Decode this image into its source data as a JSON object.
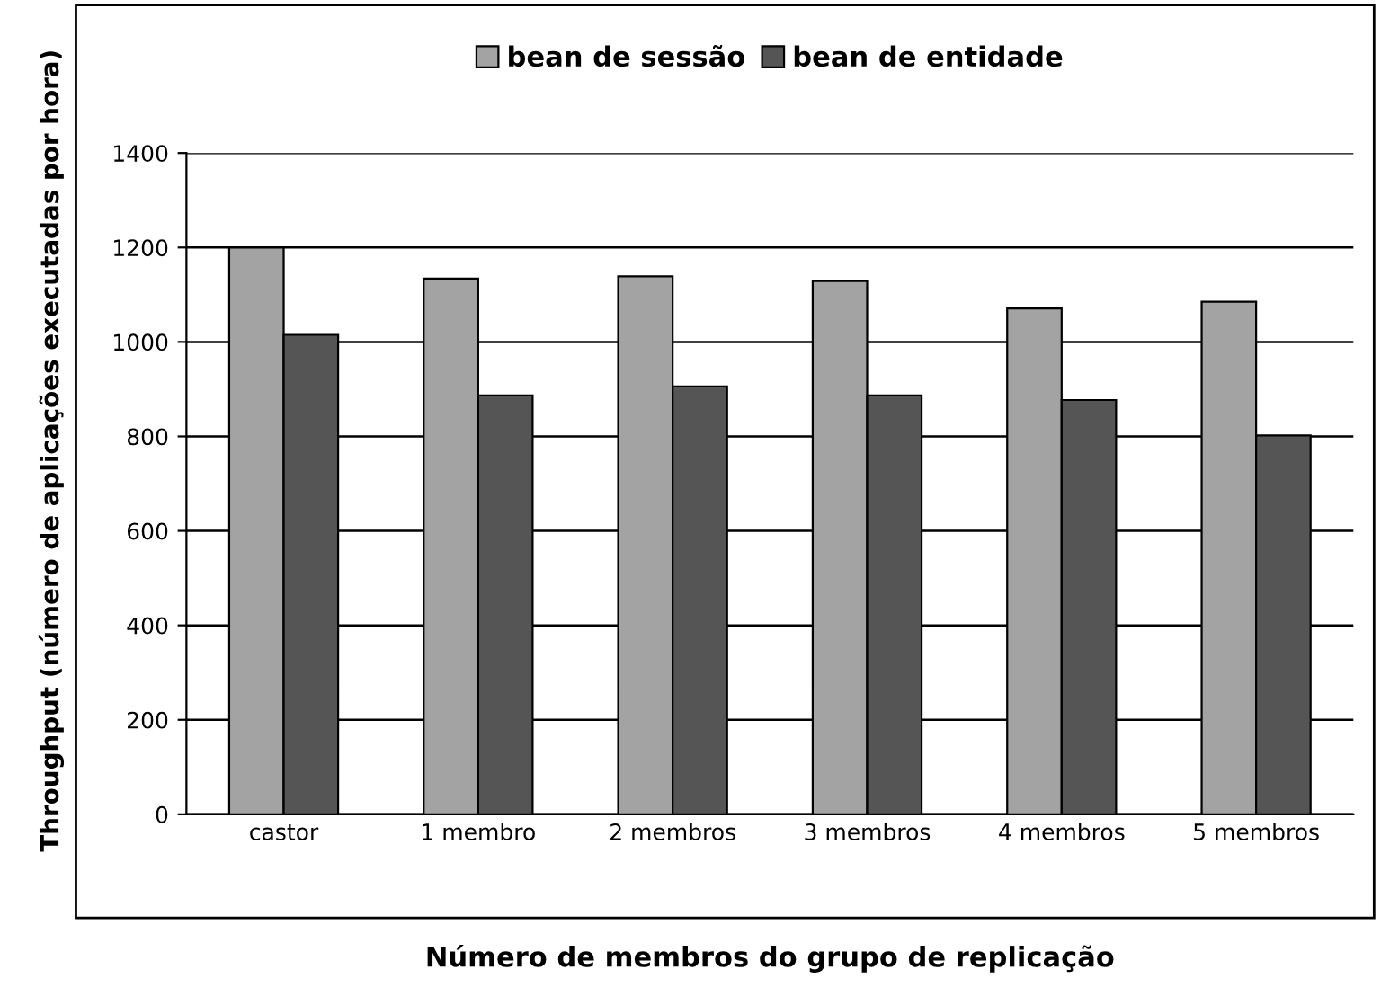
{
  "chart_data": {
    "type": "bar",
    "xlabel": "Número de membros do grupo de replicação",
    "ylabel": "Throughput (número de aplicações executadas por hora)",
    "categories": [
      "castor",
      "1 membro",
      "2 membros",
      "3 membros",
      "4 membros",
      "5 membros"
    ],
    "series": [
      {
        "name": "bean de sessão",
        "color": "#a3a3a3",
        "values": [
          1200,
          1134,
          1139,
          1129,
          1071,
          1085
        ]
      },
      {
        "name": "bean de entidade",
        "color": "#555555",
        "values": [
          1015,
          887,
          906,
          887,
          877,
          802
        ]
      }
    ],
    "ylim": [
      0,
      1400
    ],
    "yticks": [
      0,
      200,
      400,
      600,
      800,
      1000,
      1200,
      1400
    ],
    "grid": "y",
    "legend": "top"
  }
}
